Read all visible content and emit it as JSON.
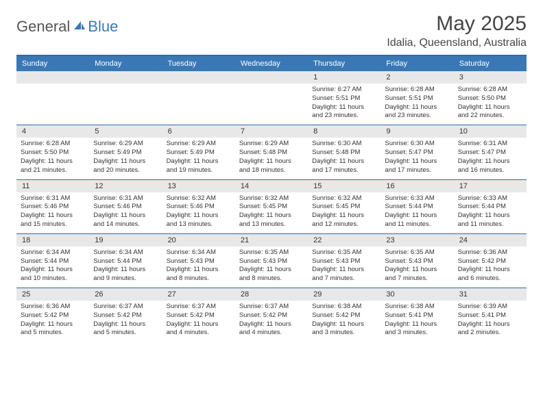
{
  "logo": {
    "text_general": "General",
    "text_blue": "Blue",
    "icon_color": "#3a78b5"
  },
  "header": {
    "month_title": "May 2025",
    "location": "Idalia, Queensland, Australia"
  },
  "colors": {
    "header_bg": "#3a78b5",
    "header_text": "#ffffff",
    "border": "#2a6aa8",
    "daynum_bg": "#e8e8e8",
    "body_text": "#333333"
  },
  "weekdays": [
    "Sunday",
    "Monday",
    "Tuesday",
    "Wednesday",
    "Thursday",
    "Friday",
    "Saturday"
  ],
  "weeks": [
    [
      {
        "n": "",
        "sunrise": "",
        "sunset": "",
        "daylight": ""
      },
      {
        "n": "",
        "sunrise": "",
        "sunset": "",
        "daylight": ""
      },
      {
        "n": "",
        "sunrise": "",
        "sunset": "",
        "daylight": ""
      },
      {
        "n": "",
        "sunrise": "",
        "sunset": "",
        "daylight": ""
      },
      {
        "n": "1",
        "sunrise": "Sunrise: 6:27 AM",
        "sunset": "Sunset: 5:51 PM",
        "daylight": "Daylight: 11 hours and 23 minutes."
      },
      {
        "n": "2",
        "sunrise": "Sunrise: 6:28 AM",
        "sunset": "Sunset: 5:51 PM",
        "daylight": "Daylight: 11 hours and 23 minutes."
      },
      {
        "n": "3",
        "sunrise": "Sunrise: 6:28 AM",
        "sunset": "Sunset: 5:50 PM",
        "daylight": "Daylight: 11 hours and 22 minutes."
      }
    ],
    [
      {
        "n": "4",
        "sunrise": "Sunrise: 6:28 AM",
        "sunset": "Sunset: 5:50 PM",
        "daylight": "Daylight: 11 hours and 21 minutes."
      },
      {
        "n": "5",
        "sunrise": "Sunrise: 6:29 AM",
        "sunset": "Sunset: 5:49 PM",
        "daylight": "Daylight: 11 hours and 20 minutes."
      },
      {
        "n": "6",
        "sunrise": "Sunrise: 6:29 AM",
        "sunset": "Sunset: 5:49 PM",
        "daylight": "Daylight: 11 hours and 19 minutes."
      },
      {
        "n": "7",
        "sunrise": "Sunrise: 6:29 AM",
        "sunset": "Sunset: 5:48 PM",
        "daylight": "Daylight: 11 hours and 18 minutes."
      },
      {
        "n": "8",
        "sunrise": "Sunrise: 6:30 AM",
        "sunset": "Sunset: 5:48 PM",
        "daylight": "Daylight: 11 hours and 17 minutes."
      },
      {
        "n": "9",
        "sunrise": "Sunrise: 6:30 AM",
        "sunset": "Sunset: 5:47 PM",
        "daylight": "Daylight: 11 hours and 17 minutes."
      },
      {
        "n": "10",
        "sunrise": "Sunrise: 6:31 AM",
        "sunset": "Sunset: 5:47 PM",
        "daylight": "Daylight: 11 hours and 16 minutes."
      }
    ],
    [
      {
        "n": "11",
        "sunrise": "Sunrise: 6:31 AM",
        "sunset": "Sunset: 5:46 PM",
        "daylight": "Daylight: 11 hours and 15 minutes."
      },
      {
        "n": "12",
        "sunrise": "Sunrise: 6:31 AM",
        "sunset": "Sunset: 5:46 PM",
        "daylight": "Daylight: 11 hours and 14 minutes."
      },
      {
        "n": "13",
        "sunrise": "Sunrise: 6:32 AM",
        "sunset": "Sunset: 5:46 PM",
        "daylight": "Daylight: 11 hours and 13 minutes."
      },
      {
        "n": "14",
        "sunrise": "Sunrise: 6:32 AM",
        "sunset": "Sunset: 5:45 PM",
        "daylight": "Daylight: 11 hours and 13 minutes."
      },
      {
        "n": "15",
        "sunrise": "Sunrise: 6:32 AM",
        "sunset": "Sunset: 5:45 PM",
        "daylight": "Daylight: 11 hours and 12 minutes."
      },
      {
        "n": "16",
        "sunrise": "Sunrise: 6:33 AM",
        "sunset": "Sunset: 5:44 PM",
        "daylight": "Daylight: 11 hours and 11 minutes."
      },
      {
        "n": "17",
        "sunrise": "Sunrise: 6:33 AM",
        "sunset": "Sunset: 5:44 PM",
        "daylight": "Daylight: 11 hours and 11 minutes."
      }
    ],
    [
      {
        "n": "18",
        "sunrise": "Sunrise: 6:34 AM",
        "sunset": "Sunset: 5:44 PM",
        "daylight": "Daylight: 11 hours and 10 minutes."
      },
      {
        "n": "19",
        "sunrise": "Sunrise: 6:34 AM",
        "sunset": "Sunset: 5:44 PM",
        "daylight": "Daylight: 11 hours and 9 minutes."
      },
      {
        "n": "20",
        "sunrise": "Sunrise: 6:34 AM",
        "sunset": "Sunset: 5:43 PM",
        "daylight": "Daylight: 11 hours and 8 minutes."
      },
      {
        "n": "21",
        "sunrise": "Sunrise: 6:35 AM",
        "sunset": "Sunset: 5:43 PM",
        "daylight": "Daylight: 11 hours and 8 minutes."
      },
      {
        "n": "22",
        "sunrise": "Sunrise: 6:35 AM",
        "sunset": "Sunset: 5:43 PM",
        "daylight": "Daylight: 11 hours and 7 minutes."
      },
      {
        "n": "23",
        "sunrise": "Sunrise: 6:35 AM",
        "sunset": "Sunset: 5:43 PM",
        "daylight": "Daylight: 11 hours and 7 minutes."
      },
      {
        "n": "24",
        "sunrise": "Sunrise: 6:36 AM",
        "sunset": "Sunset: 5:42 PM",
        "daylight": "Daylight: 11 hours and 6 minutes."
      }
    ],
    [
      {
        "n": "25",
        "sunrise": "Sunrise: 6:36 AM",
        "sunset": "Sunset: 5:42 PM",
        "daylight": "Daylight: 11 hours and 5 minutes."
      },
      {
        "n": "26",
        "sunrise": "Sunrise: 6:37 AM",
        "sunset": "Sunset: 5:42 PM",
        "daylight": "Daylight: 11 hours and 5 minutes."
      },
      {
        "n": "27",
        "sunrise": "Sunrise: 6:37 AM",
        "sunset": "Sunset: 5:42 PM",
        "daylight": "Daylight: 11 hours and 4 minutes."
      },
      {
        "n": "28",
        "sunrise": "Sunrise: 6:37 AM",
        "sunset": "Sunset: 5:42 PM",
        "daylight": "Daylight: 11 hours and 4 minutes."
      },
      {
        "n": "29",
        "sunrise": "Sunrise: 6:38 AM",
        "sunset": "Sunset: 5:42 PM",
        "daylight": "Daylight: 11 hours and 3 minutes."
      },
      {
        "n": "30",
        "sunrise": "Sunrise: 6:38 AM",
        "sunset": "Sunset: 5:41 PM",
        "daylight": "Daylight: 11 hours and 3 minutes."
      },
      {
        "n": "31",
        "sunrise": "Sunrise: 6:39 AM",
        "sunset": "Sunset: 5:41 PM",
        "daylight": "Daylight: 11 hours and 2 minutes."
      }
    ]
  ]
}
